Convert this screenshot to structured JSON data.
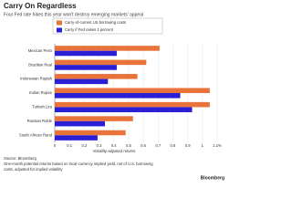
{
  "chart_data": {
    "type": "barh",
    "title": "Carry On Regardless",
    "subtitle": "Four Fed rate hikes this year won't destroy emerging markets' appeal",
    "categories": [
      "Mexican Peso",
      "Brazilian Real",
      "Indonesian Rupiah",
      "Indian Rupee",
      "Turkish Lira",
      "Russian Ruble",
      "South African Rand"
    ],
    "series": [
      {
        "name": "Carry-of-current US borrowing costs",
        "color": "#e8743b",
        "values": [
          0.71,
          0.62,
          0.56,
          1.05,
          1.05,
          0.53,
          0.48
        ]
      },
      {
        "name": "Carry if Fed raises 1 percent",
        "color": "#2b1fd6",
        "values": [
          0.42,
          0.42,
          0.36,
          0.85,
          0.93,
          0.34,
          0.29
        ]
      }
    ],
    "xlim": [
      0,
      1.1
    ],
    "xticks": [
      0,
      0.1,
      0.2,
      0.3,
      0.4,
      0.5,
      0.6,
      0.7,
      0.8,
      0.9,
      1,
      {
        "value": 1.1,
        "label": "1.1%"
      }
    ],
    "xlabel": "Volatility-adjusted returns",
    "source": "Source: Bloomberg",
    "notes": [
      "One-month potential returns based on local-currency implied yield, net of U.S. borrowing",
      "costs, adjusted for implied volatility"
    ],
    "brand": "Bloomberg",
    "grid": true
  }
}
